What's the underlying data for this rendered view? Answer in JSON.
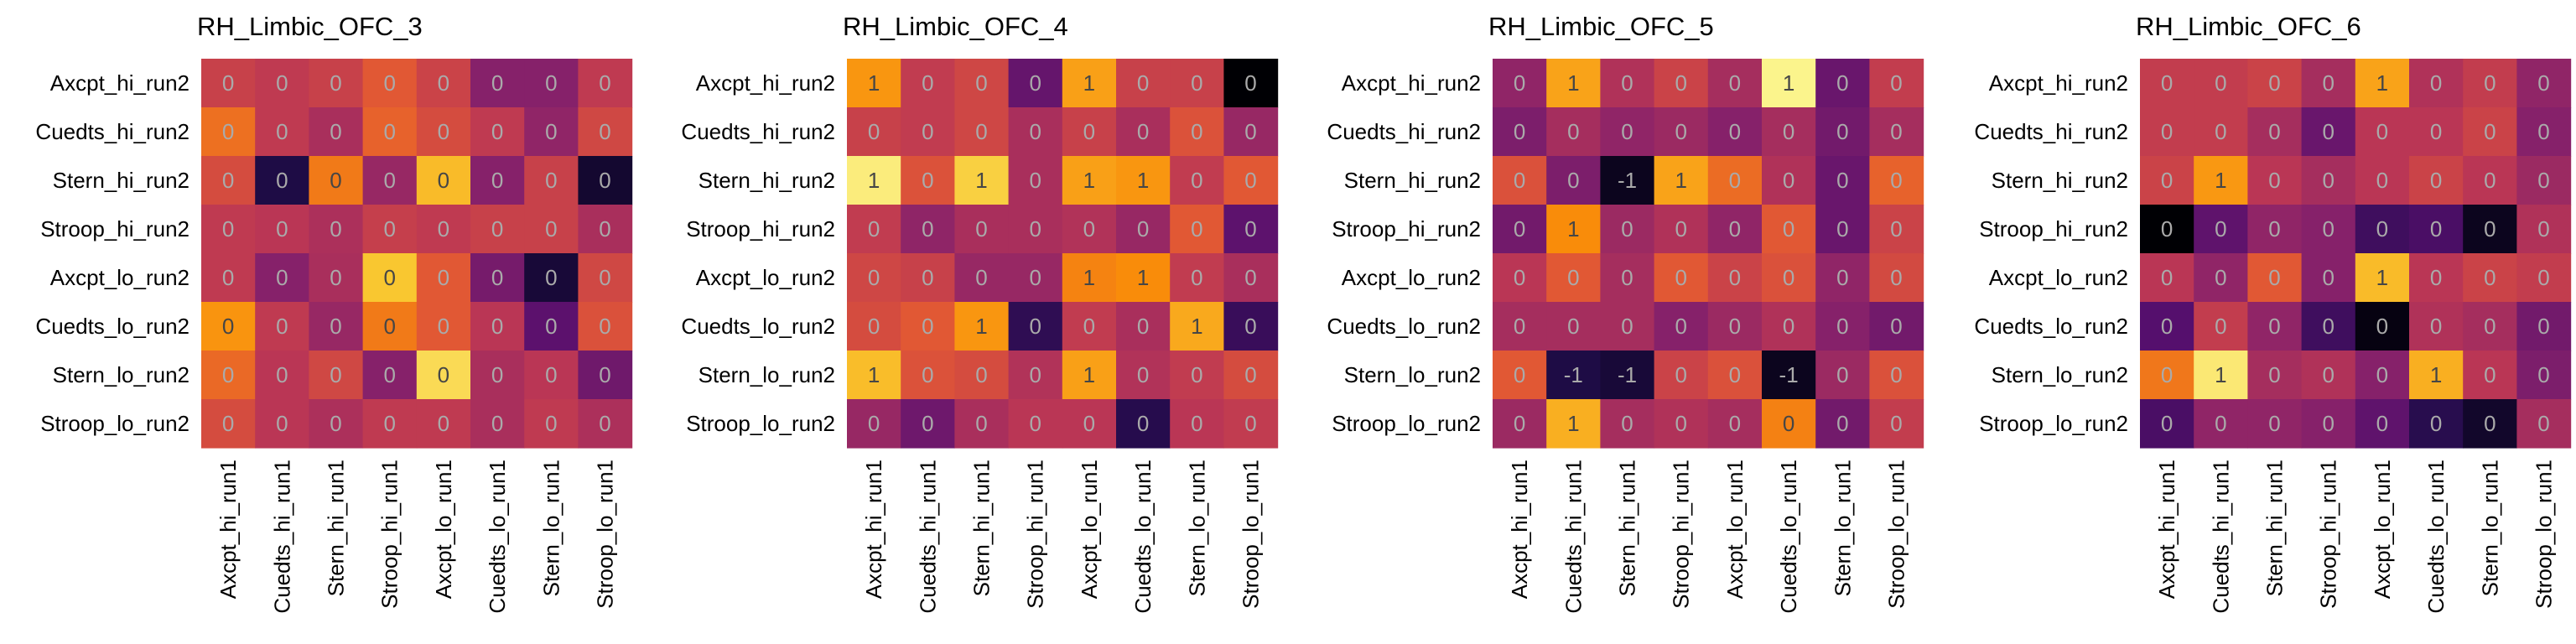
{
  "chart_data": [
    {
      "type": "heatmap",
      "title": "RH_Limbic_OFC_3",
      "x_labels": [
        "Axcpt_hi_run1",
        "Cuedts_hi_run1",
        "Stern_hi_run1",
        "Stroop_hi_run1",
        "Axcpt_lo_run1",
        "Cuedts_lo_run1",
        "Stern_lo_run1",
        "Stroop_lo_run1"
      ],
      "y_labels": [
        "Axcpt_hi_run2",
        "Cuedts_hi_run2",
        "Stern_hi_run2",
        "Stroop_hi_run2",
        "Axcpt_lo_run2",
        "Cuedts_lo_run2",
        "Stern_lo_run2",
        "Stroop_lo_run2"
      ],
      "colormap": "inferno",
      "vmin": -0.6,
      "vmax": 0.6,
      "values": [
        [
          0.05,
          0.02,
          0.05,
          0.15,
          0.06,
          -0.15,
          -0.15,
          0.02
        ],
        [
          0.22,
          0.02,
          -0.05,
          0.18,
          0.1,
          0.02,
          -0.12,
          0.08
        ],
        [
          0.1,
          -0.45,
          0.25,
          -0.1,
          0.42,
          -0.15,
          0.05,
          -0.5
        ],
        [
          0.02,
          0.0,
          -0.04,
          0.04,
          0.02,
          0.05,
          0.05,
          -0.05
        ],
        [
          0.02,
          -0.15,
          -0.05,
          0.45,
          0.15,
          -0.2,
          -0.48,
          0.08
        ],
        [
          0.32,
          0.02,
          -0.1,
          0.25,
          0.15,
          0.0,
          -0.28,
          0.12
        ],
        [
          0.2,
          0.0,
          0.08,
          -0.15,
          0.5,
          -0.05,
          0.0,
          -0.22
        ],
        [
          0.1,
          0.0,
          -0.04,
          0.02,
          0.02,
          -0.05,
          0.02,
          -0.04
        ]
      ],
      "labels": [
        [
          "0",
          "0",
          "0",
          "0",
          "0",
          "0",
          "0",
          "0"
        ],
        [
          "0",
          "0",
          "0",
          "0",
          "0",
          "0",
          "0",
          "0"
        ],
        [
          "0",
          "0",
          "0",
          "0",
          "0",
          "0",
          "0",
          "0"
        ],
        [
          "0",
          "0",
          "0",
          "0",
          "0",
          "0",
          "0",
          "0"
        ],
        [
          "0",
          "0",
          "0",
          "0",
          "0",
          "0",
          "0",
          "0"
        ],
        [
          "0",
          "0",
          "0",
          "0",
          "0",
          "0",
          "0",
          "0"
        ],
        [
          "0",
          "0",
          "0",
          "0",
          "0",
          "0",
          "0",
          "0"
        ],
        [
          "0",
          "0",
          "0",
          "0",
          "0",
          "0",
          "0",
          "0"
        ]
      ]
    },
    {
      "type": "heatmap",
      "title": "RH_Limbic_OFC_4",
      "x_labels": [
        "Axcpt_hi_run1",
        "Cuedts_hi_run1",
        "Stern_hi_run1",
        "Stroop_hi_run1",
        "Axcpt_lo_run1",
        "Cuedts_lo_run1",
        "Stern_lo_run1",
        "Stroop_lo_run1"
      ],
      "y_labels": [
        "Axcpt_hi_run2",
        "Cuedts_hi_run2",
        "Stern_hi_run2",
        "Stroop_hi_run2",
        "Axcpt_lo_run2",
        "Cuedts_lo_run2",
        "Stern_lo_run2",
        "Stroop_lo_run2"
      ],
      "colormap": "inferno",
      "vmin": -1.2,
      "vmax": 1.2,
      "values": [
        [
          0.65,
          0.05,
          0.15,
          -0.5,
          0.7,
          0.1,
          0.1,
          -1.2
        ],
        [
          0.1,
          0.05,
          0.15,
          -0.1,
          0.1,
          -0.1,
          0.25,
          -0.2
        ],
        [
          1.1,
          0.25,
          0.95,
          -0.1,
          0.7,
          0.65,
          0.05,
          0.3
        ],
        [
          0.05,
          -0.25,
          -0.1,
          -0.1,
          -0.05,
          -0.2,
          0.3,
          -0.55
        ],
        [
          0.15,
          0.1,
          -0.2,
          -0.2,
          0.55,
          0.6,
          0.05,
          -0.1
        ],
        [
          0.2,
          0.3,
          0.65,
          -0.8,
          0.05,
          -0.1,
          0.75,
          -0.75
        ],
        [
          0.85,
          0.25,
          0.2,
          -0.05,
          0.7,
          -0.05,
          0.05,
          0.2
        ],
        [
          -0.2,
          -0.45,
          -0.1,
          0.0,
          0.0,
          -0.85,
          0.0,
          0.05
        ]
      ],
      "labels": [
        [
          "1",
          "0",
          "0",
          "0",
          "1",
          "0",
          "0",
          "0"
        ],
        [
          "0",
          "0",
          "0",
          "0",
          "0",
          "0",
          "0",
          "0"
        ],
        [
          "1",
          "0",
          "1",
          "0",
          "1",
          "1",
          "0",
          "0"
        ],
        [
          "0",
          "0",
          "0",
          "0",
          "0",
          "0",
          "0",
          "0"
        ],
        [
          "0",
          "0",
          "0",
          "0",
          "1",
          "1",
          "0",
          "0"
        ],
        [
          "0",
          "0",
          "1",
          "0",
          "0",
          "0",
          "1",
          "0"
        ],
        [
          "1",
          "0",
          "0",
          "0",
          "1",
          "0",
          "0",
          "0"
        ],
        [
          "0",
          "0",
          "0",
          "0",
          "0",
          "0",
          "0",
          "0"
        ]
      ]
    },
    {
      "type": "heatmap",
      "title": "RH_Limbic_OFC_5",
      "x_labels": [
        "Axcpt_hi_run1",
        "Cuedts_hi_run1",
        "Stern_hi_run1",
        "Stroop_hi_run1",
        "Axcpt_lo_run1",
        "Cuedts_lo_run1",
        "Stern_lo_run1",
        "Stroop_lo_run1"
      ],
      "y_labels": [
        "Axcpt_hi_run2",
        "Cuedts_hi_run2",
        "Stern_hi_run2",
        "Stroop_hi_run2",
        "Axcpt_lo_run2",
        "Cuedts_lo_run2",
        "Stern_lo_run2",
        "Stroop_lo_run2"
      ],
      "colormap": "inferno",
      "vmin": -1.0,
      "vmax": 1.0,
      "values": [
        [
          -0.2,
          0.6,
          -0.05,
          0.1,
          -0.1,
          0.95,
          -0.4,
          0.05
        ],
        [
          -0.3,
          -0.1,
          -0.2,
          -0.15,
          -0.25,
          -0.1,
          -0.35,
          -0.1
        ],
        [
          0.2,
          -0.3,
          -0.9,
          0.6,
          0.35,
          -0.05,
          -0.4,
          0.3
        ],
        [
          -0.35,
          0.5,
          -0.15,
          -0.05,
          -0.2,
          0.25,
          -0.4,
          0.1
        ],
        [
          0.0,
          0.25,
          -0.1,
          0.25,
          0.1,
          0.2,
          -0.2,
          0.15
        ],
        [
          -0.1,
          -0.1,
          -0.1,
          -0.25,
          -0.15,
          -0.05,
          -0.25,
          -0.35
        ],
        [
          0.25,
          -0.75,
          -0.8,
          0.1,
          0.2,
          -0.9,
          -0.15,
          0.2
        ],
        [
          -0.15,
          0.65,
          -0.1,
          -0.05,
          -0.1,
          0.45,
          -0.35,
          0.05
        ]
      ],
      "labels": [
        [
          "0",
          "1",
          "0",
          "0",
          "0",
          "1",
          "0",
          "0"
        ],
        [
          "0",
          "0",
          "0",
          "0",
          "0",
          "0",
          "0",
          "0"
        ],
        [
          "0",
          "0",
          "-1",
          "1",
          "0",
          "0",
          "0",
          "0"
        ],
        [
          "0",
          "1",
          "0",
          "0",
          "0",
          "0",
          "0",
          "0"
        ],
        [
          "0",
          "0",
          "0",
          "0",
          "0",
          "0",
          "0",
          "0"
        ],
        [
          "0",
          "0",
          "0",
          "0",
          "0",
          "0",
          "0",
          "0"
        ],
        [
          "0",
          "-1",
          "-1",
          "0",
          "0",
          "-1",
          "0",
          "0"
        ],
        [
          "0",
          "1",
          "0",
          "0",
          "0",
          "0",
          "0",
          "0"
        ]
      ]
    },
    {
      "type": "heatmap",
      "title": "RH_Limbic_OFC_6",
      "x_labels": [
        "Axcpt_hi_run1",
        "Cuedts_hi_run1",
        "Stern_hi_run1",
        "Stroop_hi_run1",
        "Axcpt_lo_run1",
        "Cuedts_lo_run1",
        "Stern_lo_run1",
        "Stroop_lo_run1"
      ],
      "y_labels": [
        "Axcpt_hi_run2",
        "Cuedts_hi_run2",
        "Stern_hi_run2",
        "Stroop_hi_run2",
        "Axcpt_lo_run2",
        "Cuedts_lo_run2",
        "Stern_lo_run2",
        "Stroop_lo_run2"
      ],
      "colormap": "inferno",
      "vmin": -1.0,
      "vmax": 1.0,
      "values": [
        [
          0.05,
          0.05,
          0.1,
          -0.1,
          0.6,
          -0.05,
          0.05,
          -0.2
        ],
        [
          0.05,
          0.05,
          -0.1,
          -0.4,
          0.0,
          0.0,
          0.1,
          -0.25
        ],
        [
          0.1,
          0.55,
          0.0,
          -0.1,
          0.0,
          0.1,
          0.0,
          -0.15
        ],
        [
          -1.0,
          -0.45,
          -0.2,
          -0.25,
          -0.6,
          -0.55,
          -0.9,
          -0.05
        ],
        [
          0.0,
          -0.2,
          0.25,
          -0.25,
          0.7,
          0.0,
          0.1,
          0.05
        ],
        [
          -0.5,
          0.05,
          -0.2,
          -0.6,
          -0.95,
          -0.05,
          -0.1,
          -0.35
        ],
        [
          0.4,
          0.9,
          -0.1,
          -0.05,
          -0.25,
          0.65,
          0.0,
          -0.3
        ],
        [
          -0.55,
          -0.2,
          -0.2,
          -0.25,
          -0.45,
          -0.7,
          -0.85,
          -0.1
        ]
      ],
      "labels": [
        [
          "0",
          "0",
          "0",
          "0",
          "1",
          "0",
          "0",
          "0"
        ],
        [
          "0",
          "0",
          "0",
          "0",
          "0",
          "0",
          "0",
          "0"
        ],
        [
          "0",
          "1",
          "0",
          "0",
          "0",
          "0",
          "0",
          "0"
        ],
        [
          "0",
          "0",
          "0",
          "0",
          "0",
          "0",
          "0",
          "0"
        ],
        [
          "0",
          "0",
          "0",
          "0",
          "1",
          "0",
          "0",
          "0"
        ],
        [
          "0",
          "0",
          "0",
          "0",
          "0",
          "0",
          "0",
          "0"
        ],
        [
          "0",
          "1",
          "0",
          "0",
          "0",
          "1",
          "0",
          "0"
        ],
        [
          "0",
          "0",
          "0",
          "0",
          "0",
          "0",
          "0",
          "0"
        ]
      ]
    }
  ]
}
